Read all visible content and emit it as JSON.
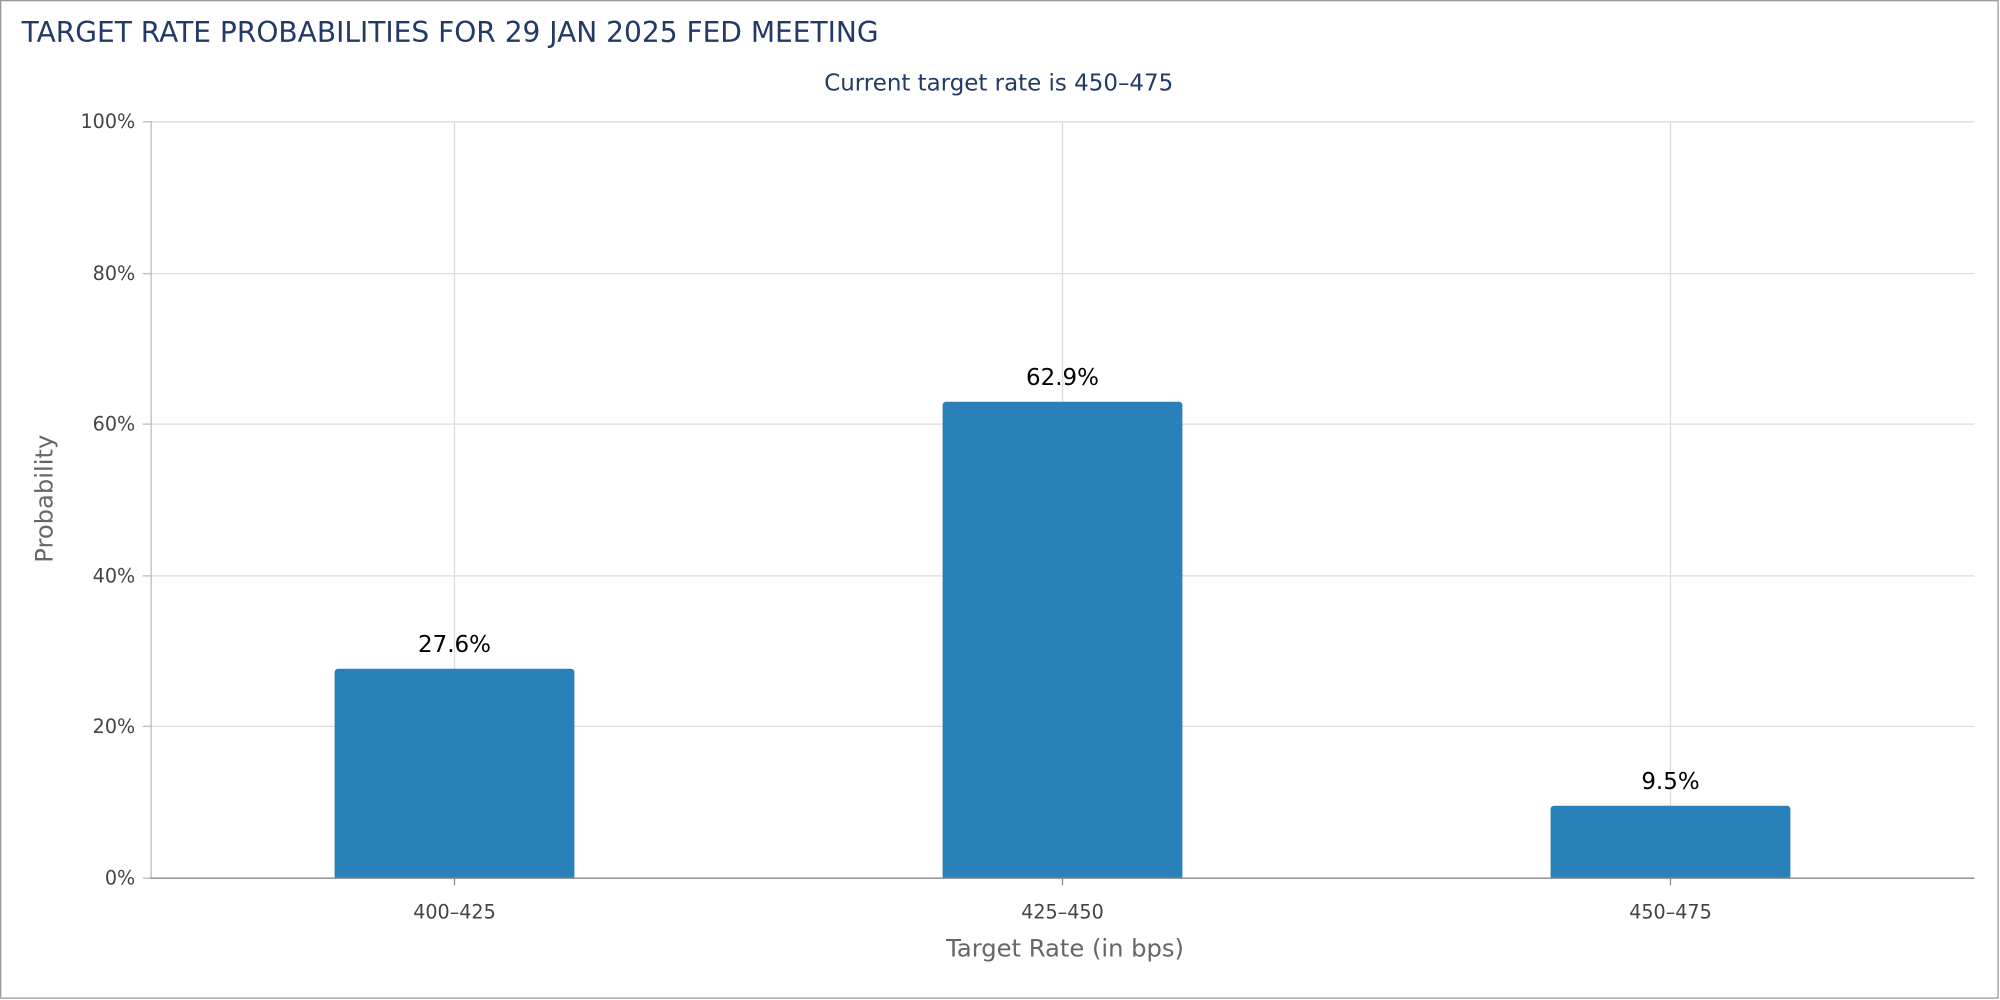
{
  "chart_data": {
    "type": "bar",
    "title": "TARGET RATE PROBABILITIES FOR 29 JAN 2025 FED MEETING",
    "subtitle": "Current target rate is 450–475",
    "xlabel": "Target Rate (in bps)",
    "ylabel": "Probability",
    "categories": [
      "400–425",
      "425–450",
      "450–475"
    ],
    "values": [
      27.6,
      62.9,
      9.5
    ],
    "data_labels": [
      "27.6%",
      "62.9%",
      "9.5%"
    ],
    "ylim": [
      0,
      100
    ],
    "yticks": [
      0,
      20,
      40,
      60,
      80,
      100
    ],
    "ytick_labels": [
      "0%",
      "20%",
      "40%",
      "60%",
      "80%",
      "100%"
    ],
    "grid": true,
    "colors": {
      "bar": "#2a80b9",
      "title": "#233a66"
    }
  }
}
